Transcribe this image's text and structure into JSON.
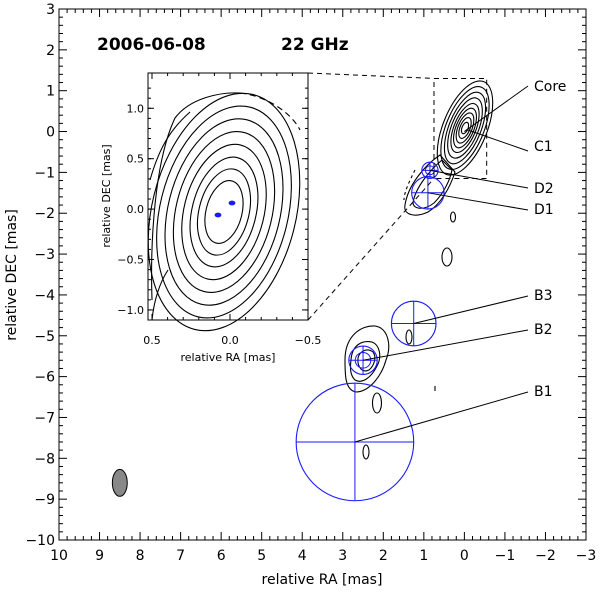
{
  "header": {
    "date": "2006-06-08",
    "frequency": "22 GHz"
  },
  "chart_data": {
    "type": "contour",
    "xlabel": "relative RA [mas]",
    "ylabel": "relative DEC [mas]",
    "xlim": [
      10,
      -3
    ],
    "ylim": [
      -10,
      3
    ],
    "x_ticks": [
      10,
      9,
      8,
      7,
      6,
      5,
      4,
      3,
      2,
      1,
      0,
      -1,
      -2,
      -3
    ],
    "y_ticks": [
      3,
      2,
      1,
      0,
      -1,
      -2,
      -3,
      -4,
      -5,
      -6,
      -7,
      -8,
      -9,
      -10
    ],
    "x_tick_labels": [
      "10",
      "9",
      "8",
      "7",
      "6",
      "5",
      "4",
      "3",
      "2",
      "1",
      "0",
      "−1",
      "−2",
      "−3"
    ],
    "y_tick_labels": [
      "3",
      "2",
      "1",
      "0",
      "−1",
      "−2",
      "−3",
      "−4",
      "−5",
      "−6",
      "−7",
      "−8",
      "−9",
      "−10"
    ],
    "components": [
      {
        "label": "Core",
        "x": 0.0,
        "y": 0.0,
        "r": 0.06
      },
      {
        "label": "C1",
        "x": -0.05,
        "y": 0.05,
        "r": 0.06
      },
      {
        "label": "D2",
        "x": 0.85,
        "y": -0.95,
        "r": 0.2
      },
      {
        "label": "D1",
        "x": 0.9,
        "y": -1.5,
        "r": 0.4
      },
      {
        "label": "B3",
        "x": 1.25,
        "y": -4.7,
        "r": 0.55
      },
      {
        "label": "B2",
        "x": 2.5,
        "y": -5.6,
        "r": 0.35
      },
      {
        "label": "B1",
        "x": 2.7,
        "y": -7.6,
        "r": 1.45
      }
    ],
    "beam": {
      "x": 8.5,
      "y": -8.6,
      "major": 0.7,
      "minor": 0.35,
      "pa": 0
    },
    "component_color": "#1a1aff",
    "contour_color": "#000000",
    "inset": {
      "xlabel": "relative RA [mas]",
      "ylabel": "relative DEC [mas]",
      "xlim": [
        0.5,
        -0.5
      ],
      "ylim": [
        -1.1,
        1.35
      ],
      "x_ticks": [
        0.5,
        0.0,
        -0.5
      ],
      "x_tick_labels": [
        "0.5",
        "0.0",
        "−0.5"
      ],
      "y_ticks": [
        1.0,
        0.5,
        0.0,
        -0.5,
        -1.0
      ],
      "y_tick_labels": [
        "1.0",
        "0.5",
        "0.0",
        "−0.5",
        "−1.0"
      ],
      "zoom_box": {
        "x1": 0.3,
        "x2": -0.55,
        "y1": 1.3,
        "y2": -1.2
      }
    }
  }
}
